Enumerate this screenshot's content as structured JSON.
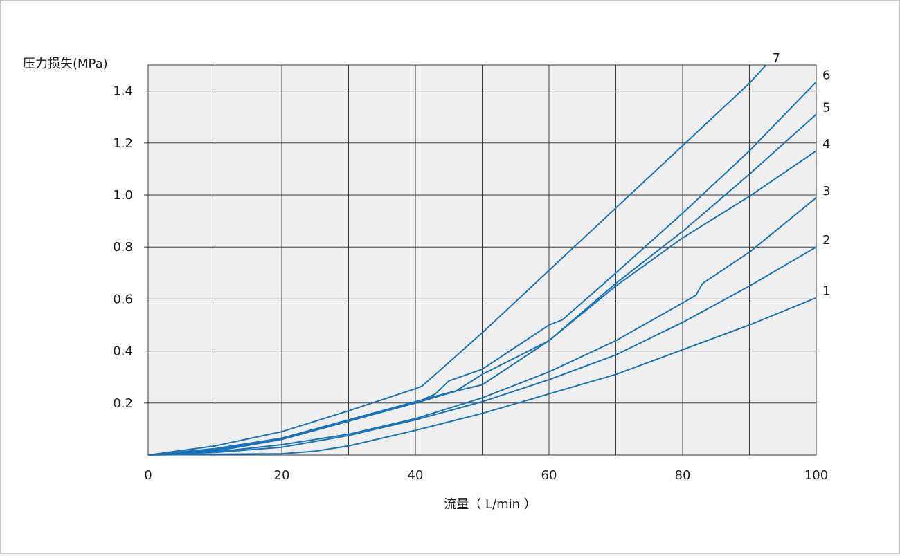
{
  "chart_data": {
    "type": "line",
    "ylabel": "压力损失(MPa)",
    "xlabel": "流量（ L/min ）",
    "xlim": [
      0,
      100
    ],
    "ylim": [
      0,
      1.5
    ],
    "x_ticks": [
      0,
      20,
      40,
      60,
      80,
      100
    ],
    "x_tick_labels": [
      "0",
      "20",
      "40",
      "60",
      "80",
      "100"
    ],
    "y_ticks": [
      0.2,
      0.4,
      0.6,
      0.8,
      1.0,
      1.2,
      1.4
    ],
    "y_tick_labels": [
      "0.2",
      "0.4",
      "0.6",
      "0.8",
      "1.0",
      "1.2",
      "1.4"
    ],
    "grid": true,
    "line_color": "#1a73b8",
    "plot_bg": "#efefef",
    "series": [
      {
        "label": "1",
        "points": [
          [
            0,
            0
          ],
          [
            10,
            0.003
          ],
          [
            20,
            0.005
          ],
          [
            25,
            0.015
          ],
          [
            30,
            0.035
          ],
          [
            40,
            0.095
          ],
          [
            50,
            0.16
          ],
          [
            60,
            0.235
          ],
          [
            70,
            0.31
          ],
          [
            80,
            0.405
          ],
          [
            90,
            0.5
          ],
          [
            100,
            0.605
          ]
        ]
      },
      {
        "label": "2",
        "points": [
          [
            0,
            0
          ],
          [
            10,
            0.01
          ],
          [
            20,
            0.03
          ],
          [
            30,
            0.075
          ],
          [
            40,
            0.135
          ],
          [
            50,
            0.205
          ],
          [
            60,
            0.29
          ],
          [
            70,
            0.385
          ],
          [
            80,
            0.51
          ],
          [
            90,
            0.65
          ],
          [
            100,
            0.8
          ]
        ]
      },
      {
        "label": "3",
        "points": [
          [
            0,
            0
          ],
          [
            10,
            0.012
          ],
          [
            20,
            0.04
          ],
          [
            30,
            0.08
          ],
          [
            40,
            0.14
          ],
          [
            50,
            0.22
          ],
          [
            60,
            0.32
          ],
          [
            70,
            0.44
          ],
          [
            80,
            0.585
          ],
          [
            82,
            0.615
          ],
          [
            83,
            0.66
          ],
          [
            90,
            0.78
          ],
          [
            100,
            0.99
          ]
        ]
      },
      {
        "label": "4",
        "points": [
          [
            0,
            0
          ],
          [
            10,
            0.015
          ],
          [
            20,
            0.06
          ],
          [
            30,
            0.13
          ],
          [
            40,
            0.2
          ],
          [
            46,
            0.245
          ],
          [
            50,
            0.31
          ],
          [
            60,
            0.44
          ],
          [
            70,
            0.65
          ],
          [
            80,
            0.835
          ],
          [
            90,
            0.995
          ],
          [
            100,
            1.17
          ]
        ]
      },
      {
        "label": "5",
        "points": [
          [
            0,
            0
          ],
          [
            10,
            0.02
          ],
          [
            20,
            0.065
          ],
          [
            30,
            0.135
          ],
          [
            40,
            0.205
          ],
          [
            45,
            0.24
          ],
          [
            50,
            0.27
          ],
          [
            60,
            0.44
          ],
          [
            70,
            0.66
          ],
          [
            80,
            0.86
          ],
          [
            90,
            1.08
          ],
          [
            100,
            1.31
          ]
        ]
      },
      {
        "label": "6",
        "points": [
          [
            0,
            0
          ],
          [
            10,
            0.025
          ],
          [
            20,
            0.065
          ],
          [
            30,
            0.135
          ],
          [
            40,
            0.2
          ],
          [
            43,
            0.235
          ],
          [
            45,
            0.285
          ],
          [
            50,
            0.33
          ],
          [
            60,
            0.5
          ],
          [
            62,
            0.52
          ],
          [
            70,
            0.7
          ],
          [
            80,
            0.93
          ],
          [
            90,
            1.17
          ],
          [
            100,
            1.435
          ]
        ]
      },
      {
        "label": "7",
        "points": [
          [
            0,
            0
          ],
          [
            10,
            0.035
          ],
          [
            20,
            0.09
          ],
          [
            30,
            0.17
          ],
          [
            40,
            0.255
          ],
          [
            41,
            0.265
          ],
          [
            50,
            0.47
          ],
          [
            60,
            0.71
          ],
          [
            70,
            0.95
          ],
          [
            80,
            1.19
          ],
          [
            90,
            1.43
          ],
          [
            92.5,
            1.5
          ]
        ]
      }
    ]
  }
}
